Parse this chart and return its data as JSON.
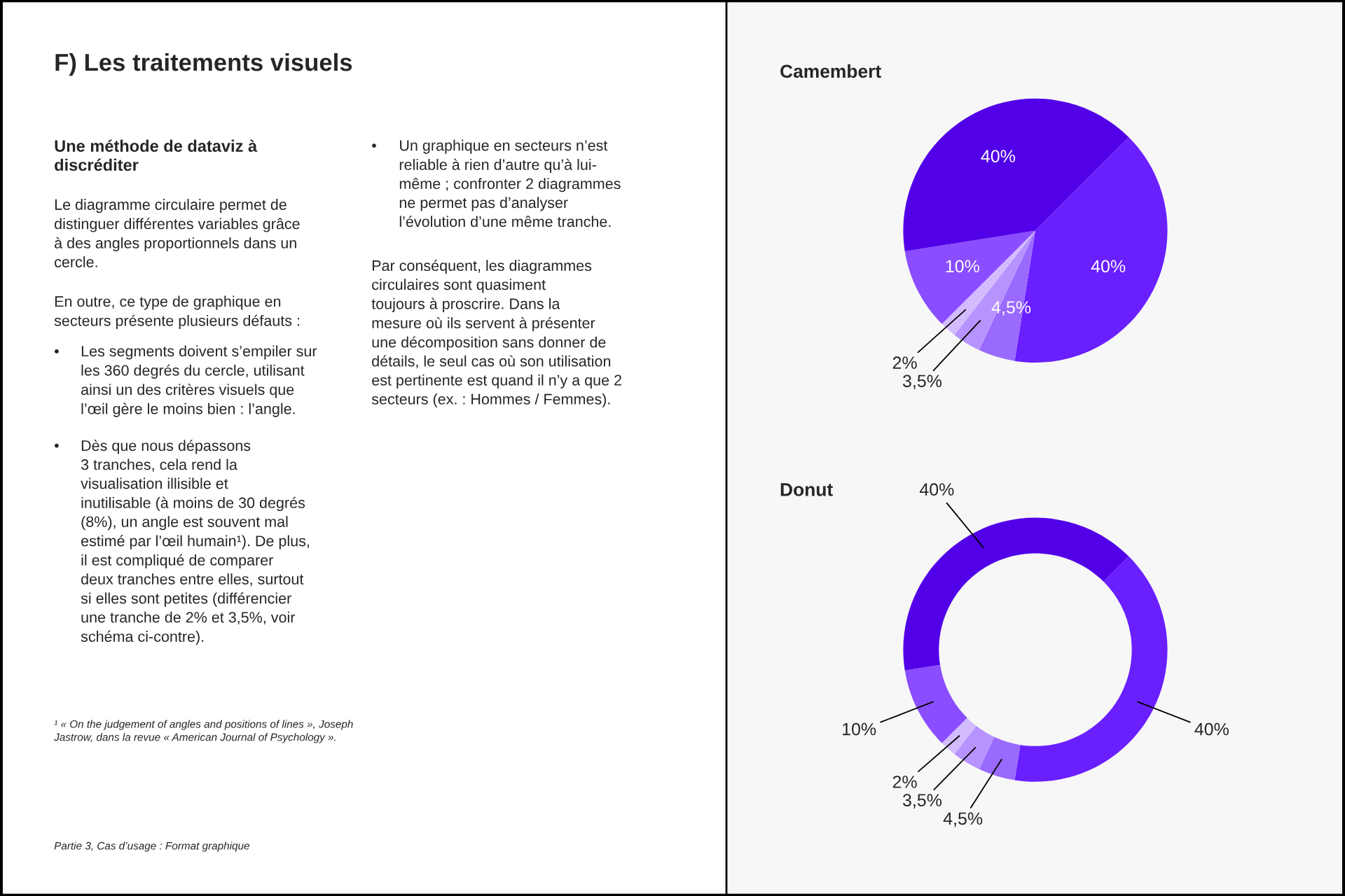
{
  "chart_data": [
    {
      "type": "other",
      "title": "F) Les traitements visuels",
      "subtitle": "Une méthode de dataviz à\ndiscréditer",
      "annotations": [
        "Le diagramme circulaire permet de\ndistinguer différentes variables grâce\nà des angles proportionnels dans un\ncercle.",
        "En outre, ce type de graphique en\nsecteurs présente plusieurs défauts :",
        "•",
        "Les segments doivent s’empiler sur\nles 360 degrés du cercle, utilisant\nainsi un des critères visuels que\nl’œil gère le moins bien : l’angle.",
        "•",
        "Dès que nous dépassons\n3 tranches, cela rend la\nvisualisation illisible et\ninutilisable (à moins de 30 degrés\n(8%), un angle est souvent mal\nestimé par l’œil humain¹). De plus,\nil est compliqué de comparer\ndeux tranches entre elles, surtout\nsi elles sont petites (différencier\nune tranche de 2% et 3,5%, voir\nschéma ci-contre).",
        "•",
        "Un graphique en secteurs n’est\nreliable à rien d’autre qu’à lui-\nmême ; confronter 2 diagrammes\nne permet pas d’analyser\nl’évolution d’une même tranche.",
        "Par conséquent, les diagrammes\ncirculaires sont quasiment\ntoujours à proscrire. Dans la\nmesure où ils servent à présenter\nune décomposition sans donner de\ndétails, le seul cas où son utilisation\nest pertinente est quand il n’y a que 2\nsecteurs (ex. : Hommes / Femmes).",
        "¹ « On the judgement of angles and positions of lines », Joseph\nJastrow, dans la revue « American Journal of Psychology ».",
        "Partie 3, Cas d’usage : Format graphique"
      ]
    },
    {
      "type": "pie",
      "title": "Camembert",
      "categories": [
        null,
        null,
        null,
        null,
        null,
        null
      ],
      "values": [
        40,
        4.5,
        3.5,
        2,
        10,
        40
      ],
      "colors": [
        "#6a1fff",
        "#9a6aff",
        "#b793ff",
        "#d2bcff",
        "#8a4dff",
        "#5200e8"
      ],
      "value_labels": [
        "40%",
        "4,5%",
        "3,5%",
        "2%",
        "10%",
        "40%"
      ]
    },
    {
      "type": "donut",
      "title": "Donut",
      "categories": [
        null,
        null,
        null,
        null,
        null,
        null
      ],
      "values": [
        40,
        4.5,
        3.5,
        2,
        10,
        40
      ],
      "colors": [
        "#6a1fff",
        "#9a6aff",
        "#b793ff",
        "#d2bcff",
        "#8a4dff",
        "#5200e8"
      ],
      "value_labels": [
        "40%",
        "4,5%",
        "3,5%",
        "2%",
        "10%",
        "40%"
      ]
    }
  ]
}
